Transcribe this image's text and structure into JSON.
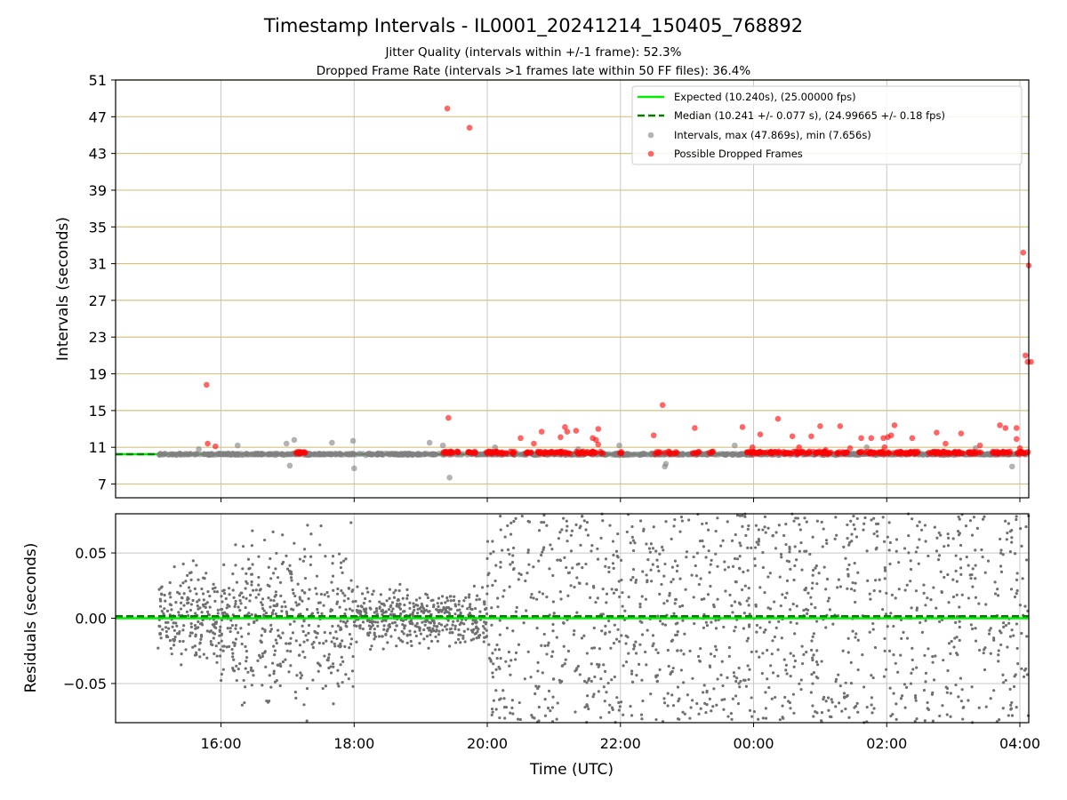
{
  "chart_data": [
    {
      "type": "scatter",
      "title": "Timestamp Intervals - IL0001_20241214_150405_768892",
      "subtitle_lines": [
        "Jitter Quality (intervals within +/-1 frame): 52.3%",
        "Dropped Frame Rate (intervals >1 frames late within 50 FF files): 36.4%"
      ],
      "xlabel": "",
      "ylabel": "Intervals (seconds)",
      "x_range": [
        "14:25",
        "04:08"
      ],
      "ylim": [
        5.5,
        51
      ],
      "y_ticks": [
        "7",
        "11",
        "15",
        "19",
        "23",
        "27",
        "31",
        "35",
        "39",
        "43",
        "47",
        "51"
      ],
      "grid": "on",
      "legend_position": "top-right",
      "legend": [
        {
          "label": "Expected (10.240s), (25.00000 fps)",
          "style": "solid-line",
          "color": "#00ee00"
        },
        {
          "label": "Median (10.241 +/- 0.077 s), (24.99665 +/- 0.18 fps)",
          "style": "dashed-line",
          "color": "#008000"
        },
        {
          "label": "Intervals, max (47.869s), min (7.656s)",
          "style": "marker",
          "color": "#808080"
        },
        {
          "label": "Possible Dropped Frames",
          "style": "marker",
          "color": "#ff0000"
        }
      ],
      "expected_interval": 10.24,
      "median_interval": 10.241,
      "series": [
        {
          "name": "Possible Dropped Frames",
          "color": "#ff0000",
          "note_outliers": [
            {
              "x": "15:47",
              "y": 17.8
            },
            {
              "x": "15:48",
              "y": 11.4
            },
            {
              "x": "15:55",
              "y": 11.1
            },
            {
              "x": "19:24",
              "y": 47.9
            },
            {
              "x": "19:25",
              "y": 14.2
            },
            {
              "x": "19:44",
              "y": 45.8
            },
            {
              "x": "20:30",
              "y": 12.0
            },
            {
              "x": "20:42",
              "y": 11.4
            },
            {
              "x": "20:49",
              "y": 12.7
            },
            {
              "x": "21:06",
              "y": 12.1
            },
            {
              "x": "21:10",
              "y": 13.2
            },
            {
              "x": "21:12",
              "y": 12.7
            },
            {
              "x": "21:20",
              "y": 12.8
            },
            {
              "x": "21:35",
              "y": 12.0
            },
            {
              "x": "21:38",
              "y": 11.8
            },
            {
              "x": "21:40",
              "y": 13.0
            },
            {
              "x": "21:40",
              "y": 11.3
            },
            {
              "x": "22:30",
              "y": 12.3
            },
            {
              "x": "22:38",
              "y": 15.6
            },
            {
              "x": "23:07",
              "y": 13.1
            },
            {
              "x": "23:50",
              "y": 13.2
            },
            {
              "x": "23:59",
              "y": 11.0
            },
            {
              "x": "00:06",
              "y": 12.4
            },
            {
              "x": "00:22",
              "y": 14.1
            },
            {
              "x": "00:35",
              "y": 12.2
            },
            {
              "x": "00:41",
              "y": 11.0
            },
            {
              "x": "00:52",
              "y": 12.2
            },
            {
              "x": "01:00",
              "y": 13.3
            },
            {
              "x": "01:05",
              "y": 10.7
            },
            {
              "x": "01:18",
              "y": 13.3
            },
            {
              "x": "01:27",
              "y": 10.9
            },
            {
              "x": "01:37",
              "y": 12.0
            },
            {
              "x": "01:46",
              "y": 12.0
            },
            {
              "x": "01:57",
              "y": 12.0
            },
            {
              "x": "01:58",
              "y": 11.0
            },
            {
              "x": "02:01",
              "y": 12.1
            },
            {
              "x": "02:04",
              "y": 12.3
            },
            {
              "x": "02:07",
              "y": 13.4
            },
            {
              "x": "02:23",
              "y": 12.0
            },
            {
              "x": "02:45",
              "y": 12.6
            },
            {
              "x": "02:53",
              "y": 11.4
            },
            {
              "x": "03:07",
              "y": 12.5
            },
            {
              "x": "03:24",
              "y": 11.2
            },
            {
              "x": "03:42",
              "y": 13.4
            },
            {
              "x": "03:47",
              "y": 13.1
            },
            {
              "x": "03:57",
              "y": 13.1
            },
            {
              "x": "03:57",
              "y": 11.9
            },
            {
              "x": "04:00",
              "y": 10.9
            },
            {
              "x": "04:03",
              "y": 32.2
            },
            {
              "x": "04:05",
              "y": 21.0
            },
            {
              "x": "04:07",
              "y": 20.3
            },
            {
              "x": "04:08",
              "y": 30.8
            },
            {
              "x": "04:10",
              "y": 20.3
            }
          ],
          "clusters_near_median": [
            [
              "17:04",
              "17:16"
            ],
            [
              "19:20",
              "19:35"
            ],
            [
              "19:42",
              "19:51"
            ],
            [
              "19:59",
              "20:25"
            ],
            [
              "20:34",
              "20:40"
            ],
            [
              "20:45",
              "20:55"
            ],
            [
              "20:55",
              "21:05"
            ],
            [
              "21:05",
              "21:16"
            ],
            [
              "21:20",
              "21:45"
            ],
            [
              "21:59",
              "22:01"
            ],
            [
              "22:31",
              "22:36"
            ],
            [
              "22:40",
              "22:45"
            ],
            [
              "22:48",
              "22:51"
            ],
            [
              "23:05",
              "23:11"
            ],
            [
              "23:20",
              "23:24"
            ],
            [
              "23:54",
              "00:30"
            ],
            [
              "00:30",
              "01:10"
            ],
            [
              "01:15",
              "01:25"
            ],
            [
              "01:35",
              "02:28"
            ],
            [
              "02:38",
              "03:10"
            ],
            [
              "03:13",
              "03:25"
            ],
            [
              "03:35",
              "03:53"
            ],
            [
              "03:57",
              "04:08"
            ]
          ]
        },
        {
          "name": "Intervals, max (47.869s), min (7.656s)",
          "color": "#808080",
          "x_range": [
            "15:03",
            "04:08"
          ],
          "typical_y": 10.24,
          "note_outliers": [
            {
              "x": "15:40",
              "y": 10.8
            },
            {
              "x": "16:15",
              "y": 11.2
            },
            {
              "x": "16:59",
              "y": 11.4
            },
            {
              "x": "17:02",
              "y": 9.0
            },
            {
              "x": "17:06",
              "y": 11.8
            },
            {
              "x": "17:40",
              "y": 11.5
            },
            {
              "x": "17:59",
              "y": 11.7
            },
            {
              "x": "18:00",
              "y": 8.7
            },
            {
              "x": "19:08",
              "y": 11.5
            },
            {
              "x": "19:20",
              "y": 11.2
            },
            {
              "x": "19:26",
              "y": 7.7
            },
            {
              "x": "20:07",
              "y": 11.0
            },
            {
              "x": "21:22",
              "y": 10.8
            },
            {
              "x": "21:59",
              "y": 11.2
            },
            {
              "x": "22:40",
              "y": 8.9
            },
            {
              "x": "22:41",
              "y": 9.2
            },
            {
              "x": "23:43",
              "y": 11.2
            },
            {
              "x": "01:42",
              "y": 11.0
            },
            {
              "x": "03:20",
              "y": 10.9
            },
            {
              "x": "03:53",
              "y": 8.9
            }
          ]
        }
      ]
    },
    {
      "type": "scatter",
      "ylabel": "Residuals (seconds)",
      "xlabel": "Time (UTC)",
      "ylim": [
        -0.08,
        0.08
      ],
      "y_ticks": [
        "0.05",
        "0.00",
        "−0.05"
      ],
      "x_ticks": [
        "16:00",
        "18:00",
        "20:00",
        "22:00",
        "00:00",
        "02:00",
        "04:00"
      ],
      "grid": "on",
      "series": [
        {
          "name": "Residuals",
          "color": "#707070",
          "point_count": 2800,
          "segments": [
            {
              "x_range": [
                "15:03",
                "16:10"
              ],
              "spread": 0.055
            },
            {
              "x_range": [
                "16:10",
                "18:00"
              ],
              "spread": 0.09
            },
            {
              "x_range": [
                "18:00",
                "20:00"
              ],
              "spread": 0.03
            },
            {
              "x_range": [
                "20:00",
                "04:08"
              ],
              "spread": 0.11
            }
          ]
        }
      ],
      "expected_residual": 0.0,
      "median_residual": 0.0015
    }
  ]
}
